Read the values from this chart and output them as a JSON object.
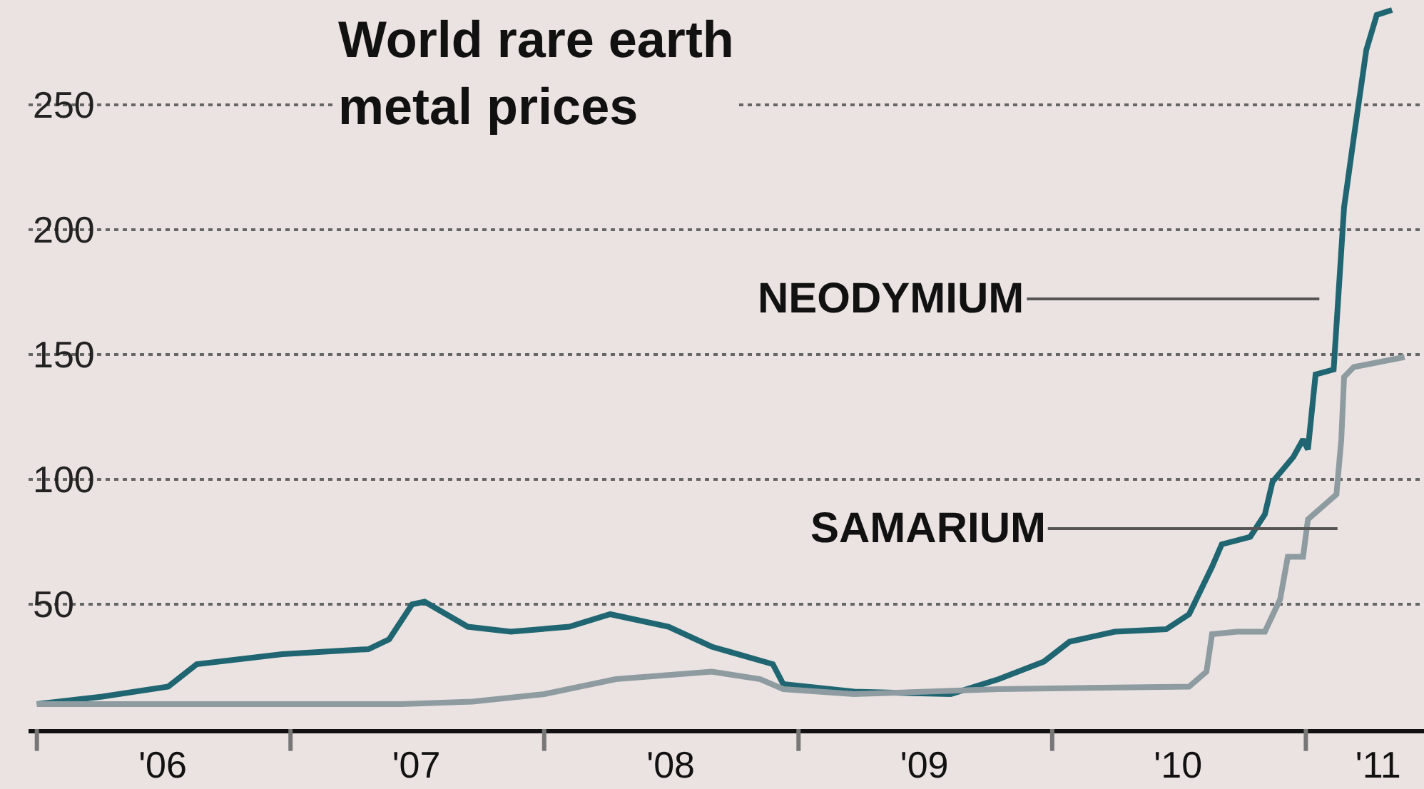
{
  "chart_data": {
    "type": "line",
    "title": "World rare earth\nmetal prices",
    "series": [
      {
        "color": "#1f6672",
        "x": [
          "2006-01-01",
          "2006-04-05",
          "2006-07-09",
          "2006-08-19",
          "2006-12-20",
          "2007-04-23",
          "2007-05-23",
          "2007-06-25",
          "2007-07-13",
          "2007-09-13",
          "2007-11-14",
          "2008-02-06",
          "2008-04-05",
          "2008-06-28",
          "2008-08-29",
          "2008-11-25",
          "2008-12-10",
          "2009-03-22",
          "2009-08-08",
          "2009-10-16",
          "2009-12-20",
          "2010-01-26",
          "2010-04-01",
          "2010-06-14",
          "2010-07-17",
          "2010-08-19",
          "2010-09-02",
          "2010-10-13",
          "2010-11-03",
          "2010-11-14",
          "2010-12-14",
          "2010-12-28",
          "2011-01-04",
          "2011-01-15",
          "2011-02-10",
          "2011-02-25",
          "2011-03-11",
          "2011-03-29",
          "2011-04-13",
          "2011-05-05"
        ],
        "values": [
          10,
          13,
          17,
          26,
          30,
          32,
          36,
          50,
          51,
          41,
          39,
          41,
          46,
          41,
          33,
          26,
          18,
          15,
          14,
          20,
          27,
          35,
          39,
          40,
          46,
          65,
          74,
          77,
          86,
          99,
          109,
          116,
          112,
          142,
          144,
          209,
          237,
          272,
          286,
          288
        ]
      },
      {
        "color": "#8e9ca2",
        "x": [
          "2006-01-01",
          "2006-03-22",
          "2006-08-04",
          "2007-06-10",
          "2007-09-20",
          "2008-01-01",
          "2008-04-13",
          "2008-08-29",
          "2008-11-07",
          "2008-12-10",
          "2009-03-22",
          "2009-10-16",
          "2010-07-17",
          "2010-08-11",
          "2010-08-19",
          "2010-09-24",
          "2010-11-03",
          "2010-11-25",
          "2010-12-06",
          "2010-12-28",
          "2011-01-04",
          "2011-02-14",
          "2011-02-21",
          "2011-02-25",
          "2011-03-11",
          "2011-05-05",
          "2011-05-23"
        ],
        "values": [
          10,
          10,
          10,
          10,
          11,
          14,
          20,
          23,
          20,
          16,
          14,
          16,
          17,
          23,
          38,
          39,
          39,
          52,
          69,
          69,
          84,
          94,
          116,
          141,
          145,
          148,
          149
        ]
      }
    ],
    "annotations": [
      "NEODYMIUM",
      "SAMARIUM"
    ],
    "xlim": [
      "2005-12-20",
      "2011-06-20"
    ],
    "xticks": [
      {
        "value": "2006-01-01",
        "label": null
      },
      {
        "value": "2006-07-01",
        "label": "'06"
      },
      {
        "value": "2007-01-01",
        "label": null
      },
      {
        "value": "2007-07-01",
        "label": "'07"
      },
      {
        "value": "2008-01-01",
        "label": null
      },
      {
        "value": "2008-07-01",
        "label": "'08"
      },
      {
        "value": "2009-01-01",
        "label": null
      },
      {
        "value": "2009-07-01",
        "label": "'09"
      },
      {
        "value": "2010-01-01",
        "label": null
      },
      {
        "value": "2010-07-01",
        "label": "'10"
      },
      {
        "value": "2011-01-01",
        "label": null
      },
      {
        "value": "2011-04-15",
        "label": "'11"
      }
    ],
    "ylim": [
      0,
      292
    ],
    "yticks": [
      50,
      100,
      150,
      200,
      250
    ],
    "grid": "y",
    "line_style": "solid",
    "marker": "none"
  }
}
